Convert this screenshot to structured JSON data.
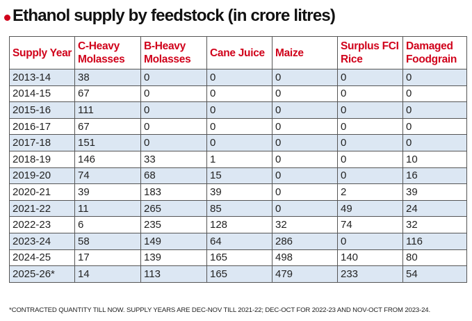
{
  "colors": {
    "accent": "#d0021b",
    "row_shade": "#dce7f3",
    "border": "#555555"
  },
  "chart_data": {
    "type": "table",
    "title": "Ethanol supply by feedstock (in crore litres)",
    "columns": [
      "Supply Year",
      "C-Heavy Molasses",
      "B-Heavy Molasses",
      "Cane Juice",
      "Maize",
      "Surplus FCI Rice",
      "Damaged Foodgrain"
    ],
    "rows": [
      [
        "2013-14",
        "38",
        "0",
        "0",
        "0",
        "0",
        "0"
      ],
      [
        "2014-15",
        "67",
        "0",
        "0",
        "0",
        "0",
        "0"
      ],
      [
        "2015-16",
        "111",
        "0",
        "0",
        "0",
        "0",
        "0"
      ],
      [
        "2016-17",
        "67",
        "0",
        "0",
        "0",
        "0",
        "0"
      ],
      [
        "2017-18",
        "151",
        "0",
        "0",
        "0",
        "0",
        "0"
      ],
      [
        "2018-19",
        "146",
        "33",
        "1",
        "0",
        "0",
        "10"
      ],
      [
        "2019-20",
        "74",
        "68",
        "15",
        "0",
        "0",
        "16"
      ],
      [
        "2020-21",
        "39",
        "183",
        "39",
        "0",
        "2",
        "39"
      ],
      [
        "2021-22",
        "11",
        "265",
        "85",
        "0",
        "49",
        "24"
      ],
      [
        "2022-23",
        "6",
        "235",
        "128",
        "32",
        "74",
        "32"
      ],
      [
        "2023-24",
        "58",
        "149",
        "64",
        "286",
        "0",
        "116"
      ],
      [
        "2024-25",
        "17",
        "139",
        "165",
        "498",
        "140",
        "80"
      ],
      [
        "2025-26*",
        "14",
        "113",
        "165",
        "479",
        "233",
        "54"
      ]
    ],
    "footnote": "*CONTRACTED QUANTITY TILL NOW. SUPPLY YEARS ARE DEC-NOV TILL 2021-22; DEC-OCT FOR 2022-23 AND NOV-OCT FROM 2023-24."
  }
}
